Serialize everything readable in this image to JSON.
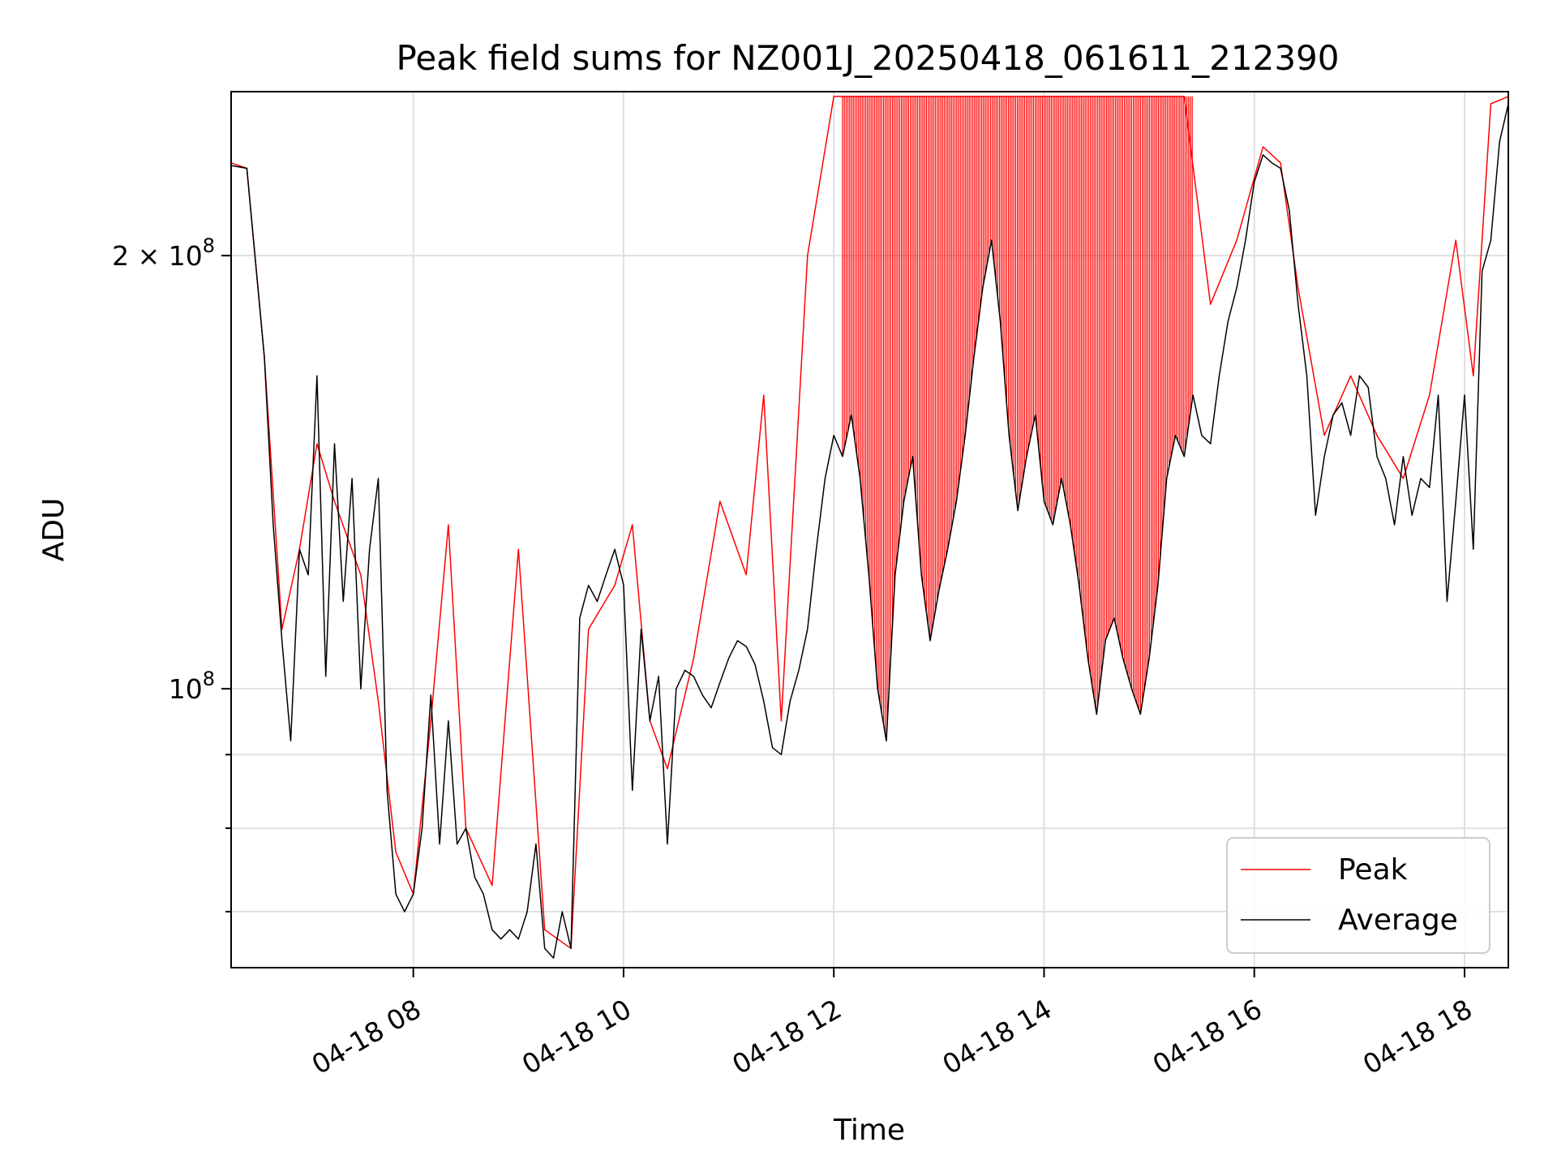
{
  "chart_data": {
    "type": "line",
    "title": "Peak field sums for NZ001J_20250418_061611_212390",
    "xlabel": "Time",
    "ylabel": "ADU",
    "yscale": "log",
    "grid": true,
    "legend_position": "lower-right",
    "xlim": [
      "2025-04-18 06:16",
      "2025-04-18 18:25"
    ],
    "ylim": [
      64000000,
      260000000
    ],
    "x_ticks": [
      {
        "value": "2025-04-18 08:00",
        "label": "04-18 08"
      },
      {
        "value": "2025-04-18 10:00",
        "label": "04-18 10"
      },
      {
        "value": "2025-04-18 12:00",
        "label": "04-18 12"
      },
      {
        "value": "2025-04-18 14:00",
        "label": "04-18 14"
      },
      {
        "value": "2025-04-18 16:00",
        "label": "04-18 16"
      },
      {
        "value": "2025-04-18 18:00",
        "label": "04-18 18"
      }
    ],
    "y_major_ticks": [
      {
        "value": 100000000,
        "base": "10",
        "exp": "8",
        "mantissa": ""
      },
      {
        "value": 200000000,
        "base": "10",
        "exp": "8",
        "mantissa": "2 × "
      }
    ],
    "y_minor_ticks": [
      70000000,
      80000000,
      90000000
    ],
    "series": [
      {
        "name": "Peak",
        "color": "#ff0000",
        "points": [
          [
            "2025-04-18 06:16",
            232000000
          ],
          [
            "2025-04-18 06:25",
            230000000
          ],
          [
            "2025-04-18 06:35",
            170000000
          ],
          [
            "2025-04-18 06:45",
            110000000
          ],
          [
            "2025-04-18 06:55",
            125000000
          ],
          [
            "2025-04-18 07:05",
            148000000
          ],
          [
            "2025-04-18 07:15",
            135000000
          ],
          [
            "2025-04-18 07:30",
            120000000
          ],
          [
            "2025-04-18 07:40",
            98000000
          ],
          [
            "2025-04-18 07:50",
            77000000
          ],
          [
            "2025-04-18 08:00",
            72000000
          ],
          [
            "2025-04-18 08:10",
            95000000
          ],
          [
            "2025-04-18 08:20",
            130000000
          ],
          [
            "2025-04-18 08:30",
            80000000
          ],
          [
            "2025-04-18 08:45",
            73000000
          ],
          [
            "2025-04-18 09:00",
            125000000
          ],
          [
            "2025-04-18 09:15",
            68000000
          ],
          [
            "2025-04-18 09:30",
            66000000
          ],
          [
            "2025-04-18 09:40",
            110000000
          ],
          [
            "2025-04-18 09:55",
            118000000
          ],
          [
            "2025-04-18 10:05",
            130000000
          ],
          [
            "2025-04-18 10:15",
            95000000
          ],
          [
            "2025-04-18 10:25",
            88000000
          ],
          [
            "2025-04-18 10:40",
            105000000
          ],
          [
            "2025-04-18 10:55",
            135000000
          ],
          [
            "2025-04-18 11:10",
            120000000
          ],
          [
            "2025-04-18 11:20",
            160000000
          ],
          [
            "2025-04-18 11:30",
            95000000
          ],
          [
            "2025-04-18 11:45",
            200000000
          ],
          [
            "2025-04-18 12:00",
            258000000
          ],
          [
            "2025-04-18 12:20",
            258000000
          ],
          [
            "2025-04-18 12:40",
            258000000
          ],
          [
            "2025-04-18 13:00",
            258000000
          ],
          [
            "2025-04-18 13:20",
            258000000
          ],
          [
            "2025-04-18 13:40",
            258000000
          ],
          [
            "2025-04-18 14:00",
            258000000
          ],
          [
            "2025-04-18 14:20",
            258000000
          ],
          [
            "2025-04-18 14:40",
            258000000
          ],
          [
            "2025-04-18 15:00",
            258000000
          ],
          [
            "2025-04-18 15:20",
            258000000
          ],
          [
            "2025-04-18 15:35",
            185000000
          ],
          [
            "2025-04-18 15:50",
            205000000
          ],
          [
            "2025-04-18 16:05",
            238000000
          ],
          [
            "2025-04-18 16:15",
            232000000
          ],
          [
            "2025-04-18 16:25",
            190000000
          ],
          [
            "2025-04-18 16:40",
            150000000
          ],
          [
            "2025-04-18 16:55",
            165000000
          ],
          [
            "2025-04-18 17:10",
            150000000
          ],
          [
            "2025-04-18 17:25",
            140000000
          ],
          [
            "2025-04-18 17:40",
            160000000
          ],
          [
            "2025-04-18 17:55",
            205000000
          ],
          [
            "2025-04-18 18:05",
            165000000
          ],
          [
            "2025-04-18 18:15",
            255000000
          ],
          [
            "2025-04-18 18:25",
            258000000
          ]
        ]
      },
      {
        "name": "Average",
        "color": "#000000",
        "points": [
          [
            "2025-04-18 06:16",
            231000000
          ],
          [
            "2025-04-18 06:25",
            230000000
          ],
          [
            "2025-04-18 06:35",
            170000000
          ],
          [
            "2025-04-18 06:40",
            130000000
          ],
          [
            "2025-04-18 06:45",
            108000000
          ],
          [
            "2025-04-18 06:50",
            92000000
          ],
          [
            "2025-04-18 06:55",
            125000000
          ],
          [
            "2025-04-18 07:00",
            120000000
          ],
          [
            "2025-04-18 07:05",
            165000000
          ],
          [
            "2025-04-18 07:10",
            102000000
          ],
          [
            "2025-04-18 07:15",
            148000000
          ],
          [
            "2025-04-18 07:20",
            115000000
          ],
          [
            "2025-04-18 07:25",
            140000000
          ],
          [
            "2025-04-18 07:30",
            100000000
          ],
          [
            "2025-04-18 07:35",
            125000000
          ],
          [
            "2025-04-18 07:40",
            140000000
          ],
          [
            "2025-04-18 07:45",
            85000000
          ],
          [
            "2025-04-18 07:50",
            72000000
          ],
          [
            "2025-04-18 07:55",
            70000000
          ],
          [
            "2025-04-18 08:00",
            72000000
          ],
          [
            "2025-04-18 08:05",
            80000000
          ],
          [
            "2025-04-18 08:10",
            99000000
          ],
          [
            "2025-04-18 08:15",
            78000000
          ],
          [
            "2025-04-18 08:20",
            95000000
          ],
          [
            "2025-04-18 08:25",
            78000000
          ],
          [
            "2025-04-18 08:30",
            80000000
          ],
          [
            "2025-04-18 08:35",
            74000000
          ],
          [
            "2025-04-18 08:40",
            72000000
          ],
          [
            "2025-04-18 08:45",
            68000000
          ],
          [
            "2025-04-18 08:50",
            67000000
          ],
          [
            "2025-04-18 08:55",
            68000000
          ],
          [
            "2025-04-18 09:00",
            67000000
          ],
          [
            "2025-04-18 09:05",
            70000000
          ],
          [
            "2025-04-18 09:10",
            78000000
          ],
          [
            "2025-04-18 09:15",
            66000000
          ],
          [
            "2025-04-18 09:20",
            65000000
          ],
          [
            "2025-04-18 09:25",
            70000000
          ],
          [
            "2025-04-18 09:30",
            66000000
          ],
          [
            "2025-04-18 09:35",
            112000000
          ],
          [
            "2025-04-18 09:40",
            118000000
          ],
          [
            "2025-04-18 09:45",
            115000000
          ],
          [
            "2025-04-18 09:50",
            120000000
          ],
          [
            "2025-04-18 09:55",
            125000000
          ],
          [
            "2025-04-18 10:00",
            118000000
          ],
          [
            "2025-04-18 10:05",
            85000000
          ],
          [
            "2025-04-18 10:10",
            110000000
          ],
          [
            "2025-04-18 10:15",
            95000000
          ],
          [
            "2025-04-18 10:20",
            102000000
          ],
          [
            "2025-04-18 10:25",
            78000000
          ],
          [
            "2025-04-18 10:30",
            100000000
          ],
          [
            "2025-04-18 10:35",
            103000000
          ],
          [
            "2025-04-18 10:40",
            102000000
          ],
          [
            "2025-04-18 10:45",
            99000000
          ],
          [
            "2025-04-18 10:50",
            97000000
          ],
          [
            "2025-04-18 10:55",
            101000000
          ],
          [
            "2025-04-18 11:00",
            105000000
          ],
          [
            "2025-04-18 11:05",
            108000000
          ],
          [
            "2025-04-18 11:10",
            107000000
          ],
          [
            "2025-04-18 11:15",
            104000000
          ],
          [
            "2025-04-18 11:20",
            98000000
          ],
          [
            "2025-04-18 11:25",
            91000000
          ],
          [
            "2025-04-18 11:30",
            90000000
          ],
          [
            "2025-04-18 11:35",
            98000000
          ],
          [
            "2025-04-18 11:40",
            103000000
          ],
          [
            "2025-04-18 11:45",
            110000000
          ],
          [
            "2025-04-18 11:50",
            125000000
          ],
          [
            "2025-04-18 11:55",
            140000000
          ],
          [
            "2025-04-18 12:00",
            150000000
          ],
          [
            "2025-04-18 12:05",
            145000000
          ],
          [
            "2025-04-18 12:10",
            155000000
          ],
          [
            "2025-04-18 12:15",
            140000000
          ],
          [
            "2025-04-18 12:20",
            120000000
          ],
          [
            "2025-04-18 12:25",
            100000000
          ],
          [
            "2025-04-18 12:30",
            92000000
          ],
          [
            "2025-04-18 12:35",
            120000000
          ],
          [
            "2025-04-18 12:40",
            135000000
          ],
          [
            "2025-04-18 12:45",
            145000000
          ],
          [
            "2025-04-18 12:50",
            120000000
          ],
          [
            "2025-04-18 12:55",
            108000000
          ],
          [
            "2025-04-18 13:00",
            117000000
          ],
          [
            "2025-04-18 13:05",
            125000000
          ],
          [
            "2025-04-18 13:10",
            135000000
          ],
          [
            "2025-04-18 13:15",
            150000000
          ],
          [
            "2025-04-18 13:20",
            170000000
          ],
          [
            "2025-04-18 13:25",
            190000000
          ],
          [
            "2025-04-18 13:30",
            205000000
          ],
          [
            "2025-04-18 13:35",
            180000000
          ],
          [
            "2025-04-18 13:40",
            150000000
          ],
          [
            "2025-04-18 13:45",
            133000000
          ],
          [
            "2025-04-18 13:50",
            145000000
          ],
          [
            "2025-04-18 13:55",
            155000000
          ],
          [
            "2025-04-18 14:00",
            135000000
          ],
          [
            "2025-04-18 14:05",
            130000000
          ],
          [
            "2025-04-18 14:10",
            140000000
          ],
          [
            "2025-04-18 14:15",
            130000000
          ],
          [
            "2025-04-18 14:20",
            118000000
          ],
          [
            "2025-04-18 14:25",
            105000000
          ],
          [
            "2025-04-18 14:30",
            96000000
          ],
          [
            "2025-04-18 14:35",
            108000000
          ],
          [
            "2025-04-18 14:40",
            112000000
          ],
          [
            "2025-04-18 14:45",
            105000000
          ],
          [
            "2025-04-18 14:50",
            100000000
          ],
          [
            "2025-04-18 14:55",
            96000000
          ],
          [
            "2025-04-18 15:00",
            105000000
          ],
          [
            "2025-04-18 15:05",
            118000000
          ],
          [
            "2025-04-18 15:10",
            140000000
          ],
          [
            "2025-04-18 15:15",
            150000000
          ],
          [
            "2025-04-18 15:20",
            145000000
          ],
          [
            "2025-04-18 15:25",
            160000000
          ],
          [
            "2025-04-18 15:30",
            150000000
          ],
          [
            "2025-04-18 15:35",
            148000000
          ],
          [
            "2025-04-18 15:40",
            165000000
          ],
          [
            "2025-04-18 15:45",
            180000000
          ],
          [
            "2025-04-18 15:50",
            190000000
          ],
          [
            "2025-04-18 15:55",
            205000000
          ],
          [
            "2025-04-18 16:00",
            225000000
          ],
          [
            "2025-04-18 16:05",
            235000000
          ],
          [
            "2025-04-18 16:10",
            232000000
          ],
          [
            "2025-04-18 16:15",
            230000000
          ],
          [
            "2025-04-18 16:20",
            215000000
          ],
          [
            "2025-04-18 16:25",
            185000000
          ],
          [
            "2025-04-18 16:30",
            165000000
          ],
          [
            "2025-04-18 16:35",
            132000000
          ],
          [
            "2025-04-18 16:40",
            145000000
          ],
          [
            "2025-04-18 16:45",
            155000000
          ],
          [
            "2025-04-18 16:50",
            158000000
          ],
          [
            "2025-04-18 16:55",
            150000000
          ],
          [
            "2025-04-18 17:00",
            165000000
          ],
          [
            "2025-04-18 17:05",
            162000000
          ],
          [
            "2025-04-18 17:10",
            145000000
          ],
          [
            "2025-04-18 17:15",
            140000000
          ],
          [
            "2025-04-18 17:20",
            130000000
          ],
          [
            "2025-04-18 17:25",
            145000000
          ],
          [
            "2025-04-18 17:30",
            132000000
          ],
          [
            "2025-04-18 17:35",
            140000000
          ],
          [
            "2025-04-18 17:40",
            138000000
          ],
          [
            "2025-04-18 17:45",
            160000000
          ],
          [
            "2025-04-18 17:50",
            115000000
          ],
          [
            "2025-04-18 17:55",
            135000000
          ],
          [
            "2025-04-18 18:00",
            160000000
          ],
          [
            "2025-04-18 18:05",
            125000000
          ],
          [
            "2025-04-18 18:10",
            195000000
          ],
          [
            "2025-04-18 18:15",
            205000000
          ],
          [
            "2025-04-18 18:20",
            240000000
          ],
          [
            "2025-04-18 18:25",
            255000000
          ]
        ]
      }
    ],
    "peak_spike_region": [
      "2025-04-18 12:05",
      "2025-04-18 15:25"
    ],
    "peak_spike_top": 258000000
  }
}
